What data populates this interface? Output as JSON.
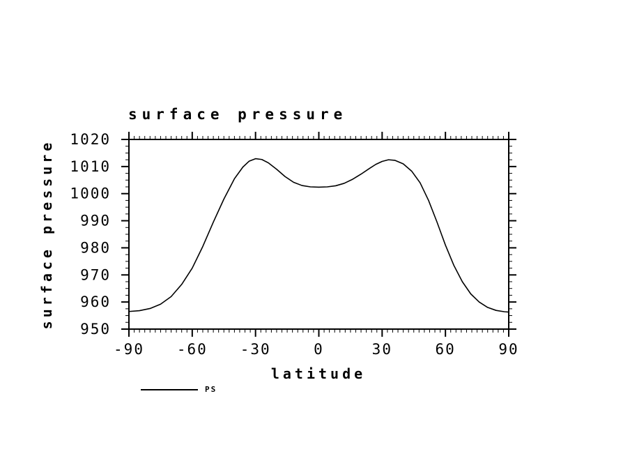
{
  "page": {
    "background": "#ffffff",
    "line_color": "#000000"
  },
  "chart": {
    "title": "surface pressure",
    "xlabel": "latitude",
    "ylabel": "surface pressure",
    "legend": {
      "label": "PS"
    }
  },
  "chart_data": {
    "type": "line",
    "title": "surface pressure",
    "xlabel": "latitude",
    "ylabel": "surface pressure",
    "xlim": [
      -90,
      90
    ],
    "ylim": [
      950,
      1020
    ],
    "x_major_ticks": [
      -90,
      -60,
      -30,
      0,
      30,
      60,
      90
    ],
    "x_tick_labels": [
      "-90",
      "-60",
      "-30",
      "0",
      "30",
      "60",
      "90"
    ],
    "y_major_ticks": [
      950,
      960,
      970,
      980,
      990,
      1000,
      1010,
      1020
    ],
    "y_tick_labels": [
      "950",
      "960",
      "970",
      "980",
      "990",
      "1000",
      "1010",
      "1020"
    ],
    "x_minor_step": 2.5,
    "y_minor_step": 2.5,
    "grid": false,
    "legend_position": "bottom-left",
    "series": [
      {
        "name": "PS",
        "color": "#000000",
        "x": [
          -90,
          -85,
          -80,
          -75,
          -70,
          -65,
          -60,
          -55,
          -50,
          -45,
          -40,
          -36,
          -33,
          -30,
          -27,
          -24,
          -20,
          -16,
          -12,
          -8,
          -4,
          0,
          4,
          8,
          12,
          16,
          20,
          24,
          27,
          30,
          33,
          36,
          40,
          44,
          48,
          52,
          56,
          60,
          64,
          68,
          72,
          76,
          80,
          84,
          88,
          90
        ],
        "y": [
          956.5,
          956.8,
          957.6,
          959.2,
          962.0,
          966.5,
          972.5,
          980.5,
          989.5,
          998.0,
          1005.5,
          1009.8,
          1012.0,
          1012.9,
          1012.6,
          1011.4,
          1009.0,
          1006.3,
          1004.2,
          1003.0,
          1002.5,
          1002.4,
          1002.5,
          1002.9,
          1003.8,
          1005.3,
          1007.2,
          1009.3,
          1010.8,
          1011.9,
          1012.5,
          1012.3,
          1011.0,
          1008.3,
          1004.0,
          997.5,
          989.5,
          981.0,
          973.5,
          967.5,
          963.0,
          960.0,
          958.0,
          956.9,
          956.4,
          956.3
        ]
      }
    ]
  }
}
